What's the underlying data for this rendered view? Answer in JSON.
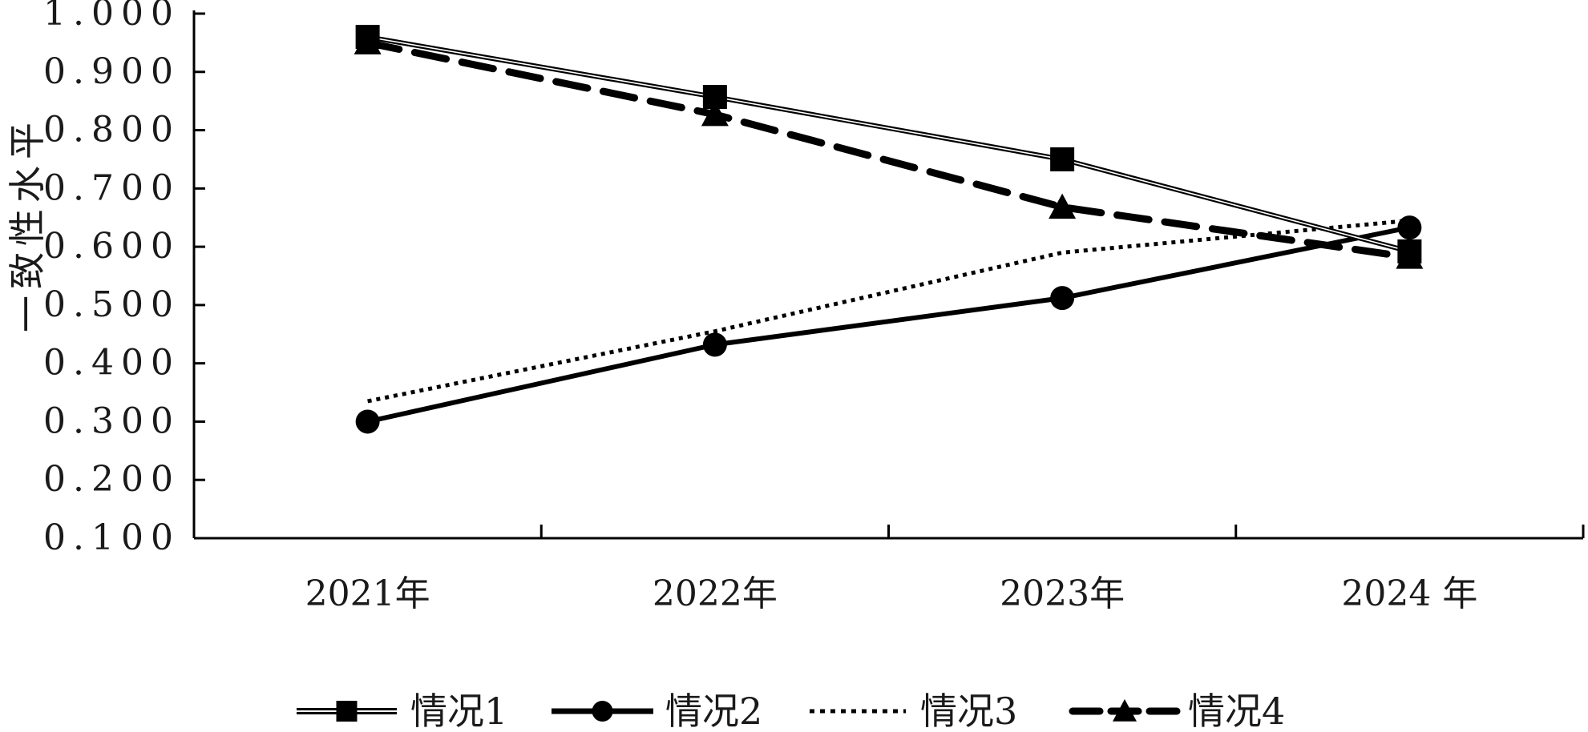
{
  "chart_data": {
    "type": "line",
    "title": "",
    "xlabel": "",
    "ylabel": "一致性水平",
    "categories": [
      "2021年",
      "2022年",
      "2023年",
      "2024 年"
    ],
    "y_ticks": [
      "1.000",
      "0.900",
      "0.800",
      "0.700",
      "0.600",
      "0.500",
      "0.400",
      "0.300",
      "0.200",
      "0.100"
    ],
    "ylim": [
      0.1,
      1.0
    ],
    "grid": false,
    "legend_position": "bottom",
    "series": [
      {
        "name": "情况1",
        "values": [
          0.96,
          0.857,
          0.75,
          0.592
        ],
        "style": "double-line",
        "marker": "square",
        "color": "#000000"
      },
      {
        "name": "情况2",
        "values": [
          0.3,
          0.432,
          0.512,
          0.633
        ],
        "style": "solid",
        "marker": "circle",
        "color": "#000000"
      },
      {
        "name": "情况3",
        "values": [
          0.335,
          0.455,
          0.59,
          0.645
        ],
        "style": "dotted",
        "marker": "none",
        "color": "#000000"
      },
      {
        "name": "情况4",
        "values": [
          0.95,
          0.827,
          0.668,
          0.582
        ],
        "style": "dashed",
        "marker": "triangle",
        "color": "#000000"
      }
    ]
  }
}
